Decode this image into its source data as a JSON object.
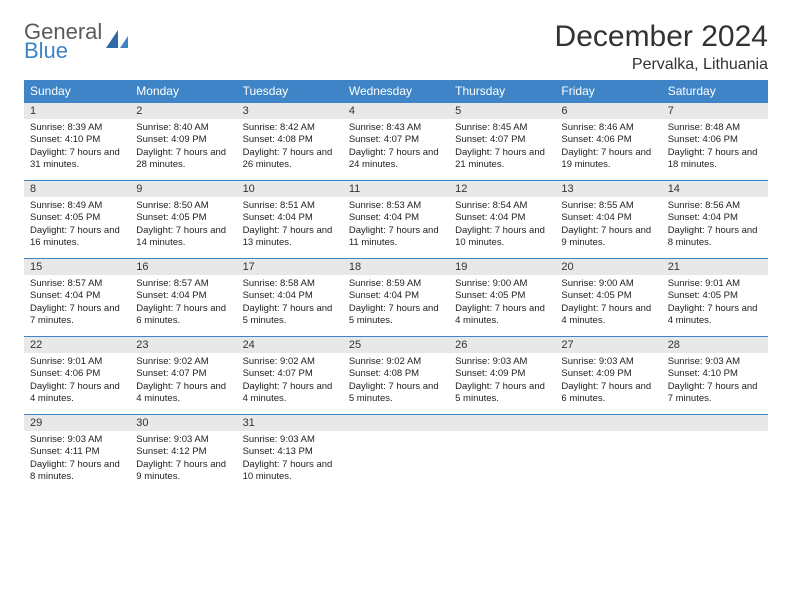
{
  "logo": {
    "line1": "General",
    "line2": "Blue"
  },
  "title": "December 2024",
  "location": "Pervalka, Lithuania",
  "colors": {
    "header_bg": "#3e84c6",
    "header_text": "#ffffff",
    "daynum_bg": "#e8e8e8",
    "border": "#3e84c6",
    "body_bg": "#ffffff",
    "text": "#333333"
  },
  "weekdays": [
    "Sunday",
    "Monday",
    "Tuesday",
    "Wednesday",
    "Thursday",
    "Friday",
    "Saturday"
  ],
  "days": [
    {
      "n": "1",
      "sr": "Sunrise: 8:39 AM",
      "ss": "Sunset: 4:10 PM",
      "dl": "Daylight: 7 hours and 31 minutes."
    },
    {
      "n": "2",
      "sr": "Sunrise: 8:40 AM",
      "ss": "Sunset: 4:09 PM",
      "dl": "Daylight: 7 hours and 28 minutes."
    },
    {
      "n": "3",
      "sr": "Sunrise: 8:42 AM",
      "ss": "Sunset: 4:08 PM",
      "dl": "Daylight: 7 hours and 26 minutes."
    },
    {
      "n": "4",
      "sr": "Sunrise: 8:43 AM",
      "ss": "Sunset: 4:07 PM",
      "dl": "Daylight: 7 hours and 24 minutes."
    },
    {
      "n": "5",
      "sr": "Sunrise: 8:45 AM",
      "ss": "Sunset: 4:07 PM",
      "dl": "Daylight: 7 hours and 21 minutes."
    },
    {
      "n": "6",
      "sr": "Sunrise: 8:46 AM",
      "ss": "Sunset: 4:06 PM",
      "dl": "Daylight: 7 hours and 19 minutes."
    },
    {
      "n": "7",
      "sr": "Sunrise: 8:48 AM",
      "ss": "Sunset: 4:06 PM",
      "dl": "Daylight: 7 hours and 18 minutes."
    },
    {
      "n": "8",
      "sr": "Sunrise: 8:49 AM",
      "ss": "Sunset: 4:05 PM",
      "dl": "Daylight: 7 hours and 16 minutes."
    },
    {
      "n": "9",
      "sr": "Sunrise: 8:50 AM",
      "ss": "Sunset: 4:05 PM",
      "dl": "Daylight: 7 hours and 14 minutes."
    },
    {
      "n": "10",
      "sr": "Sunrise: 8:51 AM",
      "ss": "Sunset: 4:04 PM",
      "dl": "Daylight: 7 hours and 13 minutes."
    },
    {
      "n": "11",
      "sr": "Sunrise: 8:53 AM",
      "ss": "Sunset: 4:04 PM",
      "dl": "Daylight: 7 hours and 11 minutes."
    },
    {
      "n": "12",
      "sr": "Sunrise: 8:54 AM",
      "ss": "Sunset: 4:04 PM",
      "dl": "Daylight: 7 hours and 10 minutes."
    },
    {
      "n": "13",
      "sr": "Sunrise: 8:55 AM",
      "ss": "Sunset: 4:04 PM",
      "dl": "Daylight: 7 hours and 9 minutes."
    },
    {
      "n": "14",
      "sr": "Sunrise: 8:56 AM",
      "ss": "Sunset: 4:04 PM",
      "dl": "Daylight: 7 hours and 8 minutes."
    },
    {
      "n": "15",
      "sr": "Sunrise: 8:57 AM",
      "ss": "Sunset: 4:04 PM",
      "dl": "Daylight: 7 hours and 7 minutes."
    },
    {
      "n": "16",
      "sr": "Sunrise: 8:57 AM",
      "ss": "Sunset: 4:04 PM",
      "dl": "Daylight: 7 hours and 6 minutes."
    },
    {
      "n": "17",
      "sr": "Sunrise: 8:58 AM",
      "ss": "Sunset: 4:04 PM",
      "dl": "Daylight: 7 hours and 5 minutes."
    },
    {
      "n": "18",
      "sr": "Sunrise: 8:59 AM",
      "ss": "Sunset: 4:04 PM",
      "dl": "Daylight: 7 hours and 5 minutes."
    },
    {
      "n": "19",
      "sr": "Sunrise: 9:00 AM",
      "ss": "Sunset: 4:05 PM",
      "dl": "Daylight: 7 hours and 4 minutes."
    },
    {
      "n": "20",
      "sr": "Sunrise: 9:00 AM",
      "ss": "Sunset: 4:05 PM",
      "dl": "Daylight: 7 hours and 4 minutes."
    },
    {
      "n": "21",
      "sr": "Sunrise: 9:01 AM",
      "ss": "Sunset: 4:05 PM",
      "dl": "Daylight: 7 hours and 4 minutes."
    },
    {
      "n": "22",
      "sr": "Sunrise: 9:01 AM",
      "ss": "Sunset: 4:06 PM",
      "dl": "Daylight: 7 hours and 4 minutes."
    },
    {
      "n": "23",
      "sr": "Sunrise: 9:02 AM",
      "ss": "Sunset: 4:07 PM",
      "dl": "Daylight: 7 hours and 4 minutes."
    },
    {
      "n": "24",
      "sr": "Sunrise: 9:02 AM",
      "ss": "Sunset: 4:07 PM",
      "dl": "Daylight: 7 hours and 4 minutes."
    },
    {
      "n": "25",
      "sr": "Sunrise: 9:02 AM",
      "ss": "Sunset: 4:08 PM",
      "dl": "Daylight: 7 hours and 5 minutes."
    },
    {
      "n": "26",
      "sr": "Sunrise: 9:03 AM",
      "ss": "Sunset: 4:09 PM",
      "dl": "Daylight: 7 hours and 5 minutes."
    },
    {
      "n": "27",
      "sr": "Sunrise: 9:03 AM",
      "ss": "Sunset: 4:09 PM",
      "dl": "Daylight: 7 hours and 6 minutes."
    },
    {
      "n": "28",
      "sr": "Sunrise: 9:03 AM",
      "ss": "Sunset: 4:10 PM",
      "dl": "Daylight: 7 hours and 7 minutes."
    },
    {
      "n": "29",
      "sr": "Sunrise: 9:03 AM",
      "ss": "Sunset: 4:11 PM",
      "dl": "Daylight: 7 hours and 8 minutes."
    },
    {
      "n": "30",
      "sr": "Sunrise: 9:03 AM",
      "ss": "Sunset: 4:12 PM",
      "dl": "Daylight: 7 hours and 9 minutes."
    },
    {
      "n": "31",
      "sr": "Sunrise: 9:03 AM",
      "ss": "Sunset: 4:13 PM",
      "dl": "Daylight: 7 hours and 10 minutes."
    }
  ]
}
